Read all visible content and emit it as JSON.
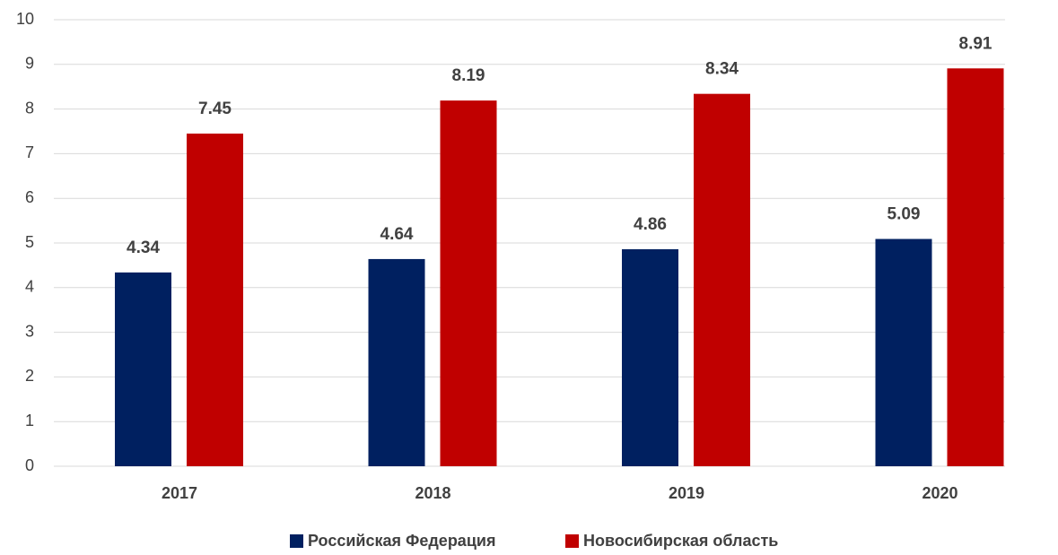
{
  "chart_data": {
    "type": "bar",
    "categories": [
      "2017",
      "2018",
      "2019",
      "2020"
    ],
    "series": [
      {
        "name": "Российская Федерация",
        "color": "#002060",
        "values": [
          4.34,
          4.64,
          4.86,
          5.09
        ]
      },
      {
        "name": "Новосибирская область",
        "color": "#c00000",
        "values": [
          7.45,
          8.19,
          8.34,
          8.91
        ]
      }
    ],
    "ylim": [
      0,
      10
    ],
    "yticks": [
      0,
      1,
      2,
      3,
      4,
      5,
      6,
      7,
      8,
      9,
      10
    ],
    "grid": true,
    "legend": "bottom"
  }
}
